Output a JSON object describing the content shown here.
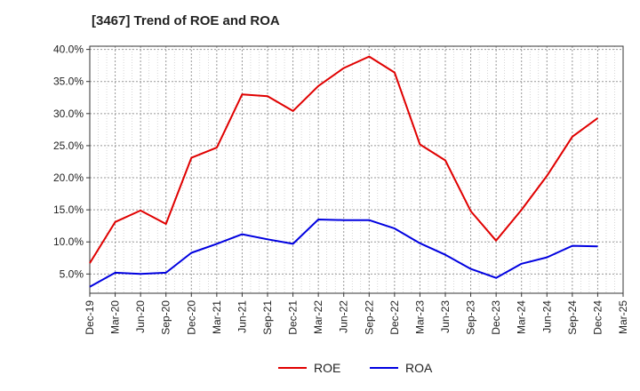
{
  "chart_data": {
    "type": "line",
    "title": "[3467]  Trend of ROE and ROA",
    "x": [
      "Dec-19",
      "Mar-20",
      "Jun-20",
      "Sep-20",
      "Dec-20",
      "Mar-21",
      "Jun-21",
      "Sep-21",
      "Dec-21",
      "Mar-22",
      "Jun-22",
      "Sep-22",
      "Dec-22",
      "Mar-23",
      "Jun-23",
      "Sep-23",
      "Dec-23",
      "Mar-24",
      "Jun-24",
      "Sep-24",
      "Dec-24",
      "Mar-25"
    ],
    "series": [
      {
        "name": "ROE",
        "color": "#e00000",
        "values": [
          6.7,
          13.1,
          14.9,
          12.8,
          23.1,
          24.7,
          33.0,
          32.7,
          30.4,
          34.3,
          37.1,
          38.9,
          36.4,
          25.2,
          22.7,
          14.8,
          10.2,
          15.0,
          20.3,
          26.4,
          29.3,
          null
        ]
      },
      {
        "name": "ROA",
        "color": "#0000e0",
        "values": [
          3.0,
          5.2,
          5.0,
          5.2,
          8.3,
          9.7,
          11.2,
          10.4,
          9.7,
          13.5,
          13.4,
          13.4,
          12.1,
          9.8,
          8.0,
          5.8,
          4.4,
          6.6,
          7.6,
          9.4,
          9.3,
          null
        ]
      }
    ],
    "y_tick_labels": [
      "5.0%",
      "10.0%",
      "15.0%",
      "20.0%",
      "25.0%",
      "30.0%",
      "35.0%",
      "40.0%"
    ],
    "y_ticks": [
      5,
      10,
      15,
      20,
      25,
      30,
      35,
      40
    ],
    "ylim": [
      2.0,
      40.5
    ],
    "xlabel": "",
    "ylabel": "",
    "grid": true,
    "legend_position": "bottom-center"
  }
}
